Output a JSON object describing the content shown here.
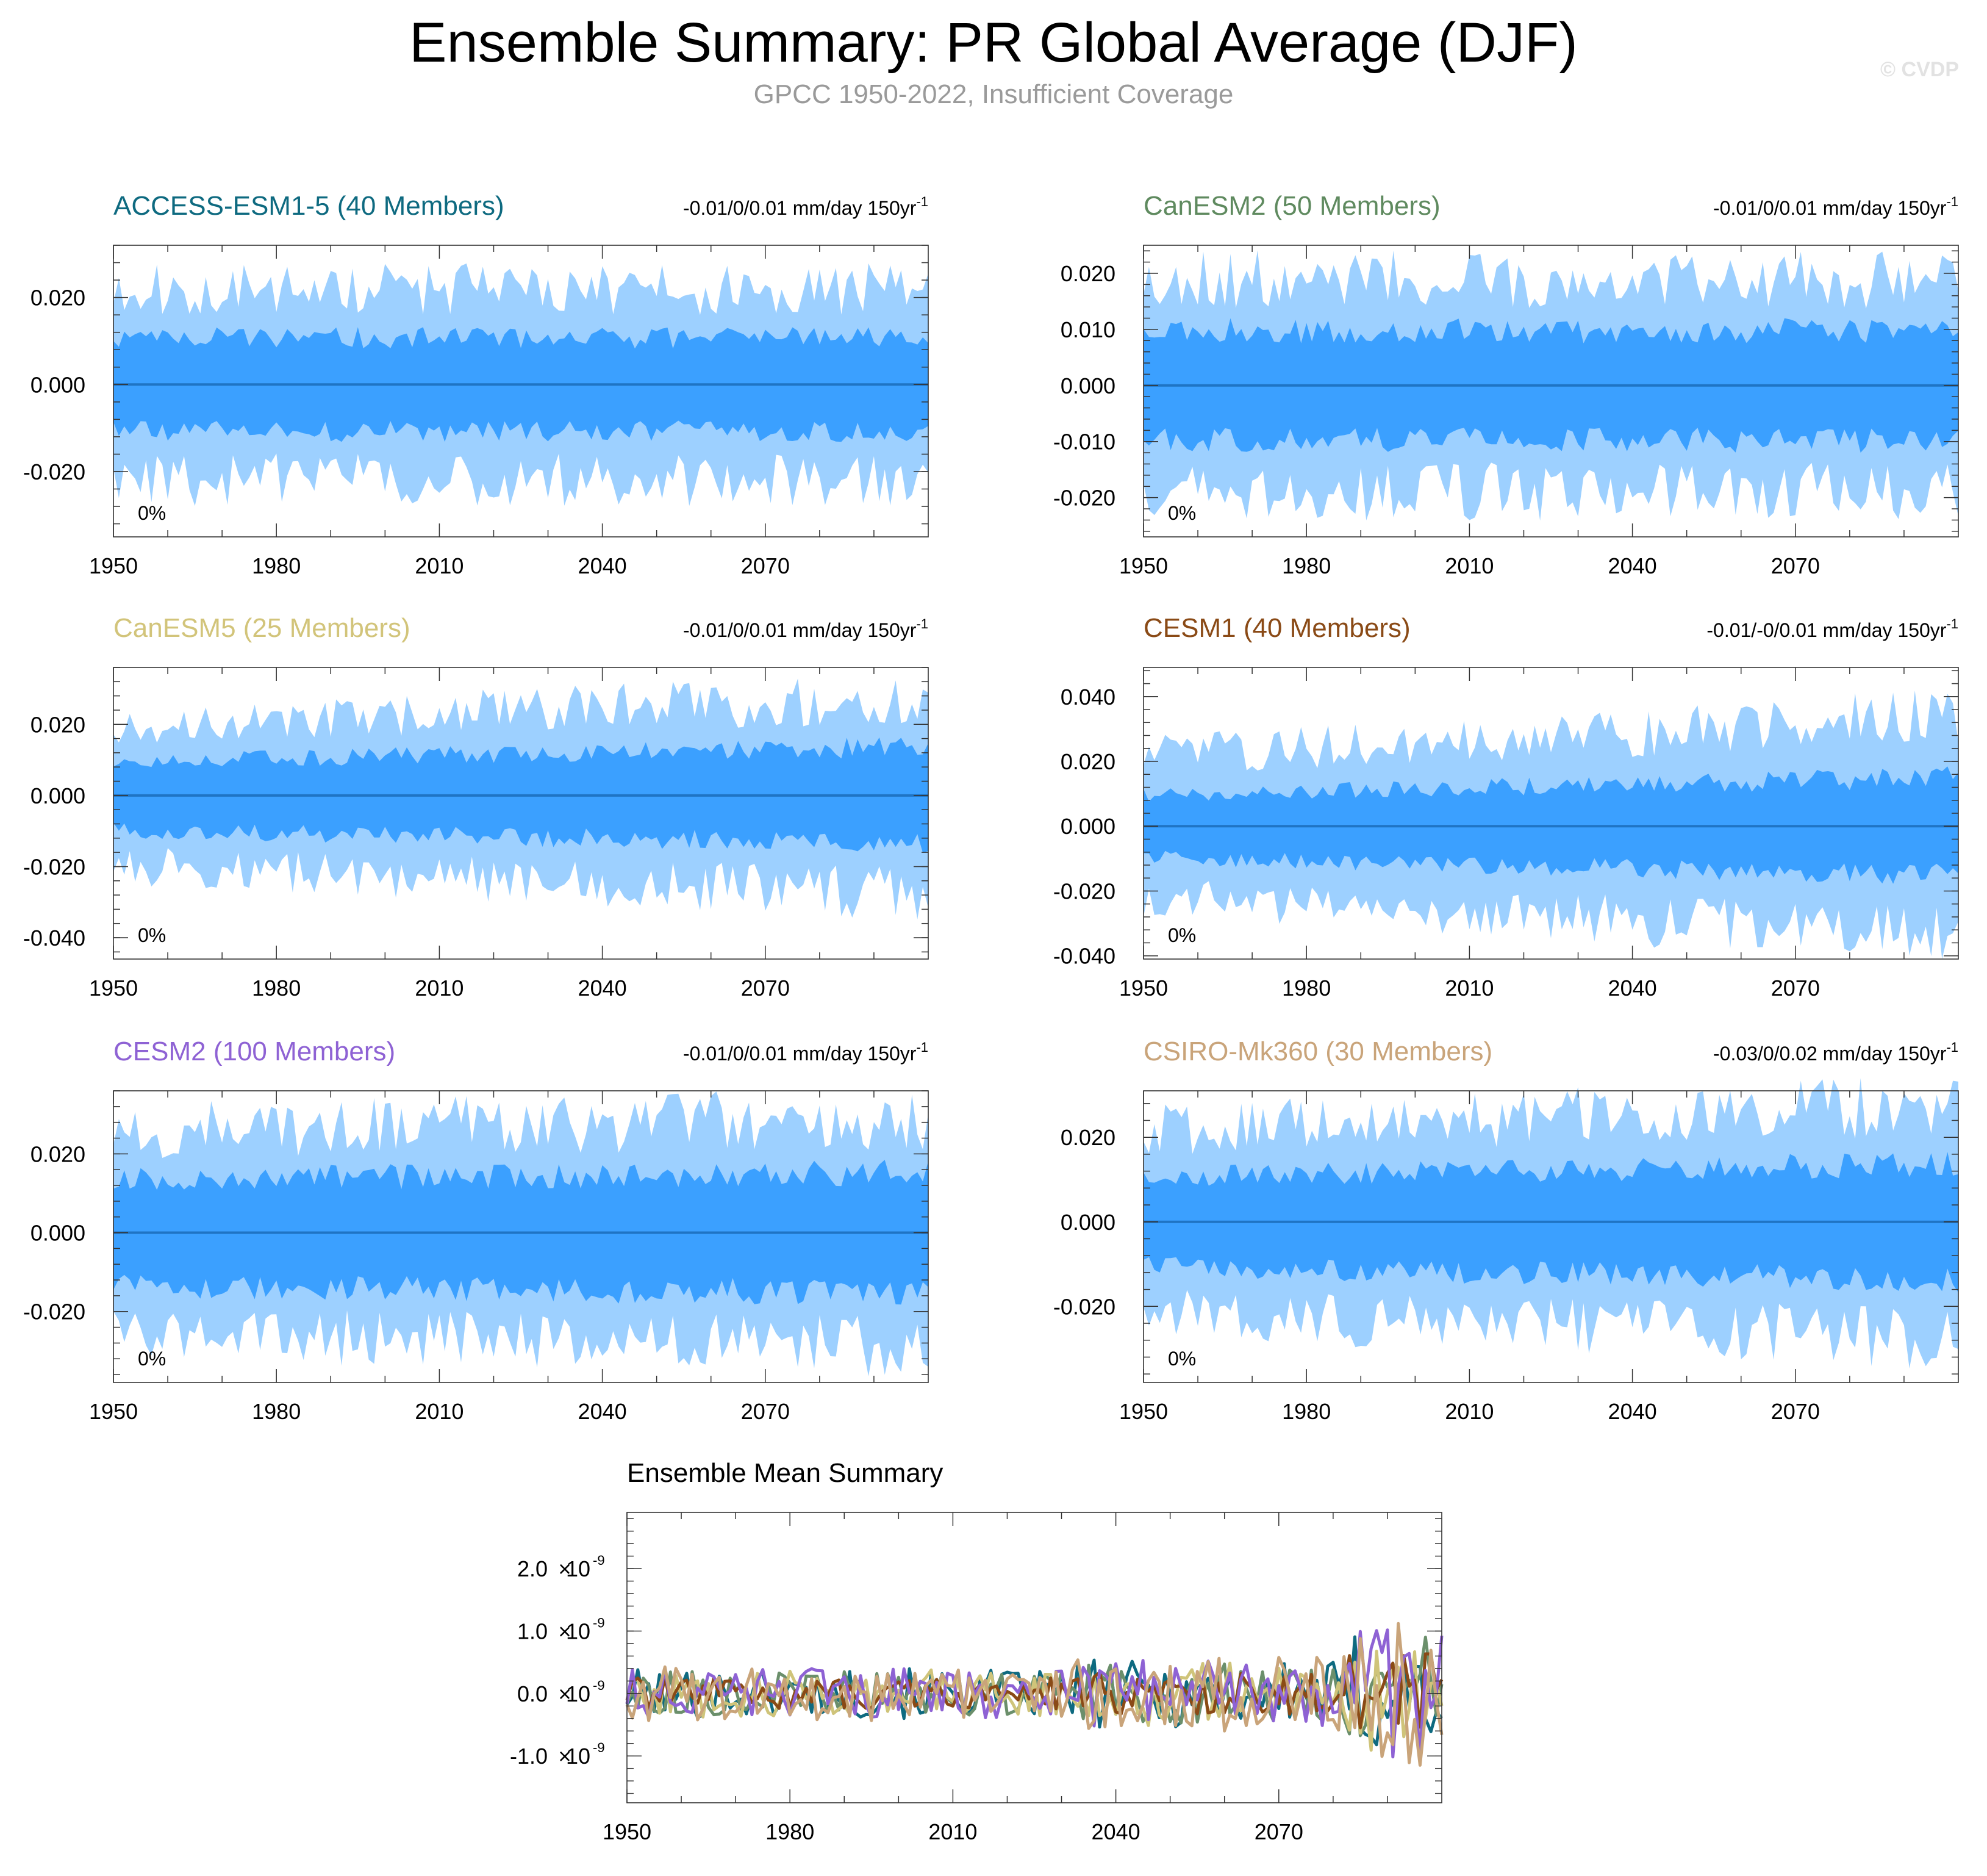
{
  "header": {
    "title": "Ensemble Summary: PR Global Average (DJF)",
    "subtitle": "GPCC 1950-2022, Insufficient Coverage",
    "watermark": "© CVDP"
  },
  "colors": {
    "outer_band": "#9dd0ff",
    "inner_band": "#3ba0ff",
    "mean_line": "#1f74c4"
  },
  "chart_data": [
    {
      "type": "area",
      "id": "access",
      "title": "ACCESS-ESM1-5 (40 Members)",
      "title_color": "#0e6a80",
      "trend_text": "-0.01/0/0.01 mm/day 150yr",
      "trend_sup": "-1",
      "pct_label": "0%",
      "xlim": [
        1950,
        2100
      ],
      "xticks": [
        1950,
        1980,
        2010,
        2040,
        2070
      ],
      "ylim": [
        -0.035,
        0.032
      ],
      "yticks": [
        -0.02,
        0.0,
        0.02
      ],
      "ytick_labels": [
        "-0.020",
        "0.000",
        "0.020"
      ],
      "outer_amp": 0.022,
      "inner_amp": 0.011,
      "trend": 0.0,
      "seed": 11
    },
    {
      "type": "area",
      "id": "canesm2",
      "title": "CanESM2 (50 Members)",
      "title_color": "#5f8a5f",
      "trend_text": "-0.01/0/0.01 mm/day 150yr",
      "trend_sup": "-1",
      "pct_label": "0%",
      "xlim": [
        1950,
        2100
      ],
      "xticks": [
        1950,
        1980,
        2010,
        2040,
        2070
      ],
      "ylim": [
        -0.027,
        0.025
      ],
      "yticks": [
        -0.02,
        -0.01,
        0.0,
        0.01,
        0.02
      ],
      "ytick_labels": [
        "-0.020",
        "-0.010",
        "0.000",
        "0.010",
        "0.020"
      ],
      "outer_amp": 0.019,
      "inner_amp": 0.01,
      "trend": 0.0,
      "seed": 23
    },
    {
      "type": "area",
      "id": "canesm5",
      "title": "CanESM5 (25 Members)",
      "title_color": "#d2c47a",
      "trend_text": "-0.01/0/0.01 mm/day 150yr",
      "trend_sup": "-1",
      "pct_label": "0%",
      "xlim": [
        1950,
        2100
      ],
      "xticks": [
        1950,
        1980,
        2010,
        2040,
        2070
      ],
      "ylim": [
        -0.046,
        0.036
      ],
      "yticks": [
        -0.04,
        -0.02,
        0.0,
        0.02
      ],
      "ytick_labels": [
        "-0.040",
        "-0.020",
        "0.000",
        "0.020"
      ],
      "outer_amp": 0.02,
      "inner_amp": 0.01,
      "trend": 0.008,
      "seed": 37
    },
    {
      "type": "area",
      "id": "cesm1",
      "title": "CESM1 (40 Members)",
      "title_color": "#8a4a16",
      "trend_text": "-0.01/-0/0.01 mm/day 150yr",
      "trend_sup": "-1",
      "pct_label": "0%",
      "xlim": [
        1950,
        2100
      ],
      "xticks": [
        1950,
        1980,
        2010,
        2040,
        2070
      ],
      "ylim": [
        -0.041,
        0.049
      ],
      "yticks": [
        -0.04,
        -0.02,
        0.0,
        0.02,
        0.04
      ],
      "ytick_labels": [
        "-0.040",
        "-0.020",
        "0.000",
        "0.020",
        "0.040"
      ],
      "outer_amp": 0.022,
      "inner_amp": 0.01,
      "trend": 0.012,
      "seed": 41
    },
    {
      "type": "area",
      "id": "cesm2",
      "title": "CESM2 (100 Members)",
      "title_color": "#8e62d4",
      "trend_text": "-0.01/0/0.01 mm/day 150yr",
      "trend_sup": "-1",
      "pct_label": "0%",
      "xlim": [
        1950,
        2100
      ],
      "xticks": [
        1950,
        1980,
        2010,
        2040,
        2070
      ],
      "ylim": [
        -0.038,
        0.036
      ],
      "yticks": [
        -0.02,
        0.0,
        0.02
      ],
      "ytick_labels": [
        "-0.020",
        "0.000",
        "0.020"
      ],
      "outer_amp": 0.026,
      "inner_amp": 0.014,
      "trend": 0.003,
      "seed": 53
    },
    {
      "type": "area",
      "id": "csiro",
      "title": "CSIRO-Mk360 (30 Members)",
      "title_color": "#c9a47a",
      "trend_text": "-0.03/0/0.02 mm/day 150yr",
      "trend_sup": "-1",
      "pct_label": "0%",
      "xlim": [
        1950,
        2100
      ],
      "xticks": [
        1950,
        1980,
        2010,
        2040,
        2070
      ],
      "ylim": [
        -0.038,
        0.031
      ],
      "yticks": [
        -0.02,
        0.0,
        0.02
      ],
      "ytick_labels": [
        "-0.020",
        "0.000",
        "0.020"
      ],
      "outer_amp": 0.022,
      "inner_amp": 0.011,
      "trend": 0.006,
      "seed": 67
    },
    {
      "type": "line",
      "id": "ensemble-mean",
      "title": "Ensemble Mean Summary",
      "title_color": "#000000",
      "xlim": [
        1950,
        2100
      ],
      "xticks": [
        1950,
        1980,
        2010,
        2040,
        2070
      ],
      "ylim": [
        -1.75,
        2.9
      ],
      "yticks": [
        -1.0,
        0.0,
        1.0,
        2.0
      ],
      "ytick_labels": [
        {
          "mantissa": "-1.0",
          "exp": "-9"
        },
        {
          "mantissa": "0.0",
          "exp": "-9"
        },
        {
          "mantissa": "1.0",
          "exp": "-9"
        },
        {
          "mantissa": "2.0",
          "exp": "-9"
        }
      ],
      "series": [
        {
          "name": "ACCESS-ESM1-5",
          "color": "#0e6a80",
          "amp": 0.4,
          "seed": 101
        },
        {
          "name": "CanESM2",
          "color": "#6b8f6b",
          "amp": 0.35,
          "seed": 113
        },
        {
          "name": "CanESM5",
          "color": "#cfc47a",
          "amp": 0.38,
          "seed": 127
        },
        {
          "name": "CESM1",
          "color": "#8a4a16",
          "amp": 0.25,
          "seed": 139
        },
        {
          "name": "CESM2",
          "color": "#8e62d4",
          "amp": 0.4,
          "seed": 151
        },
        {
          "name": "CSIRO-Mk360",
          "color": "#c9a47a",
          "amp": 0.45,
          "seed": 163
        }
      ]
    }
  ]
}
